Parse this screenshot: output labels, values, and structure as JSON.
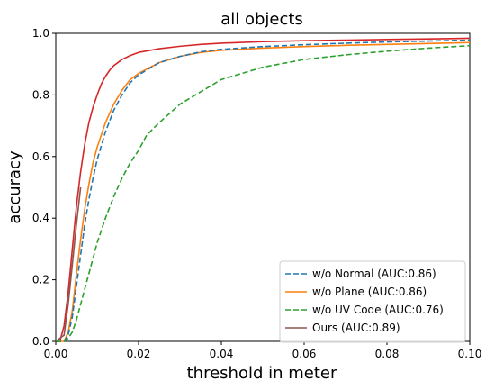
{
  "chart_data": {
    "type": "line",
    "title": "all objects",
    "xlabel": "threshold in meter",
    "ylabel": "accuracy",
    "xlim": [
      0,
      0.1
    ],
    "ylim": [
      0,
      1.0
    ],
    "grid": false,
    "legend_placement": "bottom-right",
    "xticks": [
      {
        "value": 0,
        "label": "0.00"
      },
      {
        "value": 0.02,
        "label": "0.02"
      },
      {
        "value": 0.04,
        "label": "0.04"
      },
      {
        "value": 0.06,
        "label": "0.06"
      },
      {
        "value": 0.08,
        "label": "0.08"
      },
      {
        "value": 0.1,
        "label": "0.10"
      }
    ],
    "yticks": [
      {
        "value": 0,
        "label": "0.0"
      },
      {
        "value": 0.2,
        "label": "0.2"
      },
      {
        "value": 0.4,
        "label": "0.4"
      },
      {
        "value": 0.6,
        "label": "0.6"
      },
      {
        "value": 0.8,
        "label": "0.8"
      },
      {
        "value": 1.0,
        "label": "1.0"
      }
    ],
    "series": [
      {
        "name": "w/o Normal (AUC:0.86)",
        "color": "#1f77b4",
        "dash": "dashed",
        "x": [
          0,
          0.002,
          0.003,
          0.004,
          0.005,
          0.006,
          0.007,
          0.008,
          0.009,
          0.01,
          0.012,
          0.014,
          0.016,
          0.018,
          0.02,
          0.025,
          0.03,
          0.035,
          0.04,
          0.05,
          0.06,
          0.07,
          0.08,
          0.09,
          0.1
        ],
        "y": [
          0,
          0.0,
          0.02,
          0.08,
          0.18,
          0.28,
          0.38,
          0.46,
          0.53,
          0.59,
          0.68,
          0.75,
          0.8,
          0.84,
          0.865,
          0.905,
          0.925,
          0.94,
          0.948,
          0.957,
          0.963,
          0.968,
          0.972,
          0.975,
          0.978
        ]
      },
      {
        "name": "w/o Plane (AUC:0.86)",
        "color": "#ff7f0e",
        "dash": "solid",
        "x": [
          0,
          0.002,
          0.003,
          0.004,
          0.005,
          0.006,
          0.007,
          0.008,
          0.009,
          0.01,
          0.012,
          0.014,
          0.016,
          0.018,
          0.02,
          0.025,
          0.03,
          0.035,
          0.04,
          0.05,
          0.06,
          0.07,
          0.08,
          0.09,
          0.1
        ],
        "y": [
          0,
          0.0,
          0.03,
          0.1,
          0.22,
          0.33,
          0.43,
          0.51,
          0.58,
          0.63,
          0.71,
          0.77,
          0.815,
          0.85,
          0.87,
          0.905,
          0.925,
          0.938,
          0.945,
          0.952,
          0.957,
          0.961,
          0.964,
          0.967,
          0.97
        ]
      },
      {
        "name": "w/o UV Code (AUC:0.76)",
        "color": "#2ca02c",
        "dash": "dashed",
        "x": [
          0,
          0.002,
          0.003,
          0.004,
          0.005,
          0.006,
          0.008,
          0.01,
          0.012,
          0.014,
          0.016,
          0.018,
          0.02,
          0.022,
          0.025,
          0.03,
          0.035,
          0.04,
          0.045,
          0.05,
          0.06,
          0.07,
          0.08,
          0.09,
          0.1
        ],
        "y": [
          0,
          0.0,
          0.01,
          0.03,
          0.07,
          0.12,
          0.22,
          0.32,
          0.4,
          0.47,
          0.53,
          0.58,
          0.62,
          0.67,
          0.71,
          0.77,
          0.81,
          0.85,
          0.87,
          0.89,
          0.915,
          0.93,
          0.942,
          0.952,
          0.96
        ]
      },
      {
        "name": "Ours (AUC:0.89)",
        "color": "#8c564b",
        "dash": "solid",
        "x": [
          0,
          0.002,
          0.003,
          0.004,
          0.005,
          0.006
        ],
        "y": [
          0,
          0.02,
          0.12,
          0.25,
          0.38,
          0.5
        ]
      },
      {
        "name": "",
        "color": "#d62728",
        "dash": "solid",
        "x": [
          0,
          0.001,
          0.002,
          0.003,
          0.004,
          0.005,
          0.006,
          0.007,
          0.008,
          0.009,
          0.01,
          0.011,
          0.012,
          0.013,
          0.014,
          0.016,
          0.018,
          0.02,
          0.025,
          0.03,
          0.035,
          0.04,
          0.05,
          0.06,
          0.07,
          0.08,
          0.09,
          0.1
        ],
        "y": [
          0,
          0.0,
          0.05,
          0.16,
          0.3,
          0.44,
          0.55,
          0.64,
          0.71,
          0.76,
          0.8,
          0.835,
          0.86,
          0.88,
          0.895,
          0.915,
          0.928,
          0.938,
          0.95,
          0.958,
          0.964,
          0.968,
          0.973,
          0.976,
          0.978,
          0.98,
          0.982,
          0.984
        ]
      }
    ]
  }
}
